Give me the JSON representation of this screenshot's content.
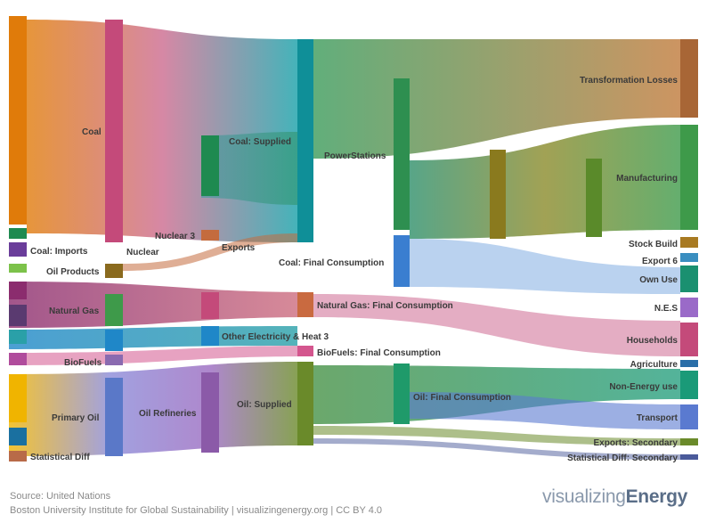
{
  "chart_data": {
    "type": "sankey",
    "title": "",
    "nodes": [
      {
        "id": "coal",
        "label": "Coal",
        "color": "#e07b0a",
        "group": "primary"
      },
      {
        "id": "coal_imports",
        "label": "Coal: Imports",
        "color": "#6a3d9a",
        "group": "primary"
      },
      {
        "id": "oil_products",
        "label": "Oil Products",
        "color": "#7cc24a",
        "group": "primary"
      },
      {
        "id": "natural_gas",
        "label": "Natural Gas",
        "color": "#8b2c6e",
        "group": "primary"
      },
      {
        "id": "biofuels",
        "label": "BioFuels",
        "color": "#b04c9c",
        "group": "primary"
      },
      {
        "id": "primary_oil",
        "label": "Primary Oil",
        "color": "#f0b400",
        "group": "primary"
      },
      {
        "id": "statistical_diff",
        "label": "Statistical Diff",
        "color": "#b86a48",
        "group": "primary"
      },
      {
        "id": "nuclear",
        "label": "Nuclear",
        "color": "#8a6a1e",
        "group": "carrier"
      },
      {
        "id": "oil_refineries",
        "label": "Oil Refineries",
        "color": "#5a78c8",
        "group": "carrier"
      },
      {
        "id": "nuclear_3",
        "label": "Nuclear 3",
        "color": "#c46b3e",
        "group": "carrier"
      },
      {
        "id": "exports",
        "label": "Exports",
        "color": "#7a4e9c",
        "group": "carrier"
      },
      {
        "id": "coal_supplied",
        "label": "Coal: Supplied",
        "color": "#1e8a50",
        "group": "supply"
      },
      {
        "id": "other_electricity",
        "label": "Other Electricity & Heat 3",
        "color": "#1f87c8",
        "group": "supply"
      },
      {
        "id": "oil_supplied",
        "label": "Oil: Supplied",
        "color": "#8b5aa8",
        "group": "supply"
      },
      {
        "id": "coal_final",
        "label": "Coal: Final Consumption",
        "color": "#3a7ed0",
        "group": "final"
      },
      {
        "id": "natural_gas_final",
        "label": "Natural Gas: Final Consumption",
        "color": "#c96a40",
        "group": "final"
      },
      {
        "id": "biofuels_final",
        "label": "BioFuels: Final Consumption",
        "color": "#d4568e",
        "group": "final"
      },
      {
        "id": "oil_final",
        "label": "Oil: Final Consumption",
        "color": "#1f9a6a",
        "group": "final"
      },
      {
        "id": "power_stations",
        "label": "PowerStations",
        "color": "#0f8f98",
        "group": "transform"
      },
      {
        "id": "transformation_losses",
        "label": "Transformation Losses",
        "color": "#a86636",
        "group": "use"
      },
      {
        "id": "manufacturing",
        "label": "Manufacturing",
        "color": "#3e9a4a",
        "group": "use"
      },
      {
        "id": "stock_build",
        "label": "Stock Build",
        "color": "#a87a22",
        "group": "use"
      },
      {
        "id": "export_6",
        "label": "Export 6",
        "color": "#3a8ec0",
        "group": "use"
      },
      {
        "id": "own_use",
        "label": "Own Use",
        "color": "#1a9070",
        "group": "use"
      },
      {
        "id": "nes",
        "label": "N.E.S",
        "color": "#9a6ac8",
        "group": "use"
      },
      {
        "id": "households",
        "label": "Households",
        "color": "#c44a7a",
        "group": "use"
      },
      {
        "id": "agriculture",
        "label": "Agriculture",
        "color": "#2a6ea8",
        "group": "use"
      },
      {
        "id": "non_energy_use",
        "label": "Non-Energy use",
        "color": "#1a9a78",
        "group": "use"
      },
      {
        "id": "transport",
        "label": "Transport",
        "color": "#5a7ad0",
        "group": "use"
      },
      {
        "id": "exports_secondary",
        "label": "Exports: Secondary",
        "color": "#6a8a2a",
        "group": "use"
      },
      {
        "id": "statistical_diff_secondary",
        "label": "Statistical Diff: Secondary",
        "color": "#4a5a9a",
        "group": "use"
      }
    ],
    "links": [
      {
        "source": "coal",
        "target": "coal_supplied",
        "value": 220
      },
      {
        "source": "coal_imports",
        "target": "coal_supplied",
        "value": 12
      },
      {
        "source": "coal_supplied",
        "target": "power_stations",
        "value": 150
      },
      {
        "source": "coal_supplied",
        "target": "coal_final",
        "value": 80
      },
      {
        "source": "power_stations",
        "target": "transformation_losses",
        "value": 90
      },
      {
        "source": "power_stations",
        "target": "manufacturing",
        "value": 40
      },
      {
        "source": "primary_oil",
        "target": "oil_refineries",
        "value": 90
      },
      {
        "source": "oil_refineries",
        "target": "oil_supplied",
        "value": 90
      },
      {
        "source": "oil_supplied",
        "target": "oil_final",
        "value": 90
      },
      {
        "source": "oil_final",
        "target": "transport",
        "value": 30
      },
      {
        "source": "oil_final",
        "target": "non_energy_use",
        "value": 30
      },
      {
        "source": "natural_gas",
        "target": "natural_gas_final",
        "value": 45
      },
      {
        "source": "natural_gas_final",
        "target": "households",
        "value": 20
      },
      {
        "source": "biofuels",
        "target": "biofuels_final",
        "value": 10
      },
      {
        "source": "nuclear",
        "target": "power_stations",
        "value": 15
      },
      {
        "source": "other_electricity",
        "target": "power_stations",
        "value": 20
      }
    ],
    "xlabel": "",
    "ylabel": ""
  },
  "footer": {
    "source": "Source: United Nations",
    "credit": "Boston University Institute for Global Sustainability | visualizingenergy.org | CC BY 4.0"
  },
  "brand": {
    "prefix": "visualizing",
    "suffix": "Energy"
  }
}
